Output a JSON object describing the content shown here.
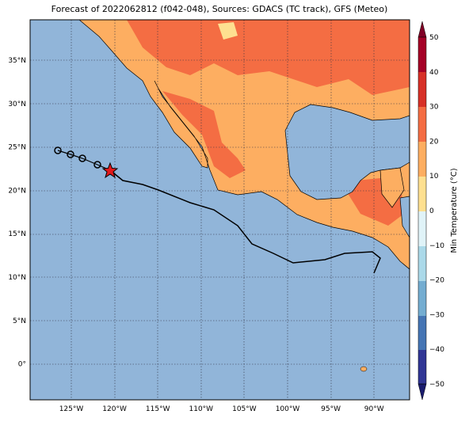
{
  "map": {
    "title": "Forecast of 2022062812 (f042-048), Sources: GDACS (TC track), GFS (Meteo)",
    "lat_labels": [
      "35°N",
      "30°N",
      "25°N",
      "20°N",
      "15°N",
      "10°N",
      "5°N",
      "0°"
    ],
    "lon_labels": [
      "125°W",
      "120°W",
      "115°W",
      "110°W",
      "105°W",
      "100°W",
      "95°W",
      "90°W"
    ],
    "colorbar": {
      "label": "Min Temperature (°C)",
      "ticks": [
        "50",
        "40",
        "30",
        "20",
        "10",
        "0",
        "−10",
        "−20",
        "−30",
        "−40",
        "−50"
      ]
    }
  }
}
